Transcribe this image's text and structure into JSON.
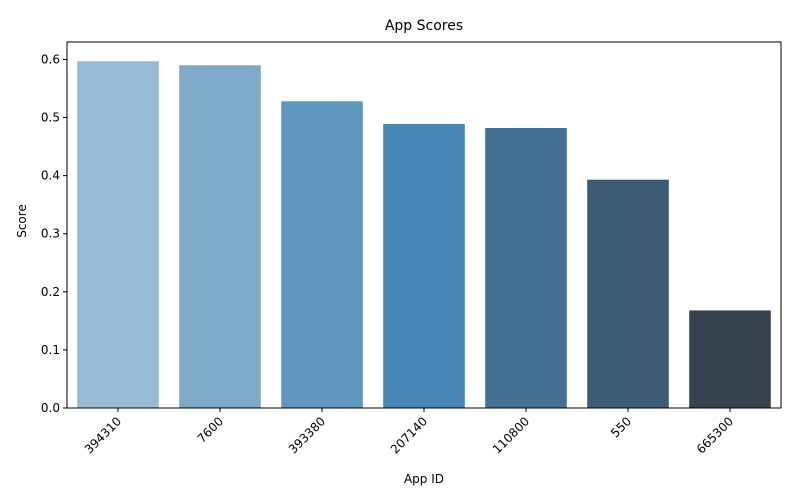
{
  "chart_data": {
    "type": "bar",
    "title": "App Scores",
    "xlabel": "App ID",
    "ylabel": "Score",
    "categories": [
      "394310",
      "7600",
      "393380",
      "207140",
      "110800",
      "550",
      "665300"
    ],
    "values": [
      0.597,
      0.59,
      0.528,
      0.489,
      0.482,
      0.393,
      0.168
    ],
    "colors": [
      "#97bbd5",
      "#7ea9c8",
      "#6097be",
      "#4787b5",
      "#427194",
      "#3b5c74",
      "#37434f"
    ],
    "ylim": [
      0,
      0.63
    ],
    "yticks": [
      0.0,
      0.1,
      0.2,
      0.3,
      0.4,
      0.5,
      0.6
    ],
    "ytick_labels": [
      "0.0",
      "0.1",
      "0.2",
      "0.3",
      "0.4",
      "0.5",
      "0.6"
    ],
    "xtick_rotation": 45,
    "grid": false,
    "legend": "none"
  }
}
